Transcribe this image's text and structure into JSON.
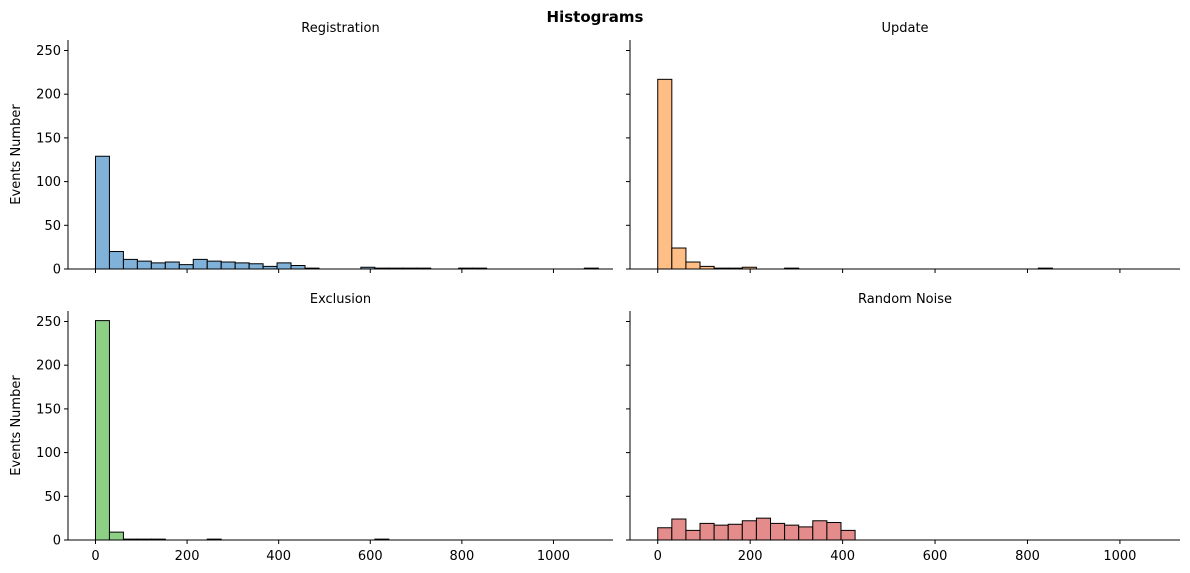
{
  "figure": {
    "title": "Histograms"
  },
  "chart_data": [
    {
      "type": "bar",
      "title": "Registration",
      "xlabel": "",
      "ylabel": "Events Number",
      "xlim": [
        -60,
        1130
      ],
      "ylim": [
        0,
        262
      ],
      "xticks": [
        0,
        200,
        400,
        600,
        800,
        1000
      ],
      "yticks": [
        0,
        50,
        100,
        150,
        200,
        250
      ],
      "show_xtick_labels": false,
      "show_ytick_labels": true,
      "bin_start": 0,
      "bin_width": 30.5,
      "color": "#7fb1d9",
      "values": [
        129,
        20,
        11,
        9,
        7,
        8,
        5,
        11,
        9,
        8,
        7,
        6,
        3,
        7,
        4,
        1,
        0,
        0,
        0,
        2,
        1,
        1,
        1,
        1,
        0,
        0,
        1,
        1,
        0,
        0,
        0,
        0,
        0,
        0,
        0,
        1
      ]
    },
    {
      "type": "bar",
      "title": "Update",
      "xlabel": "",
      "ylabel": "",
      "xlim": [
        -60,
        1130
      ],
      "ylim": [
        0,
        262
      ],
      "xticks": [
        0,
        200,
        400,
        600,
        800,
        1000
      ],
      "yticks": [
        0,
        50,
        100,
        150,
        200,
        250
      ],
      "show_xtick_labels": false,
      "show_ytick_labels": false,
      "bin_start": 0,
      "bin_width": 30.5,
      "color": "#ffbe86",
      "values": [
        217,
        24,
        8,
        3,
        1,
        1,
        2,
        0,
        0,
        1,
        0,
        0,
        0,
        0,
        0,
        0,
        0,
        0,
        0,
        0,
        0,
        0,
        0,
        0,
        0,
        0,
        0,
        1
      ]
    },
    {
      "type": "bar",
      "title": "Exclusion",
      "xlabel": "",
      "ylabel": "Events Number",
      "xlim": [
        -60,
        1130
      ],
      "ylim": [
        0,
        262
      ],
      "xticks": [
        0,
        200,
        400,
        600,
        800,
        1000
      ],
      "yticks": [
        0,
        50,
        100,
        150,
        200,
        250
      ],
      "show_xtick_labels": true,
      "show_ytick_labels": true,
      "bin_start": 0,
      "bin_width": 30.5,
      "color": "#8ecf86",
      "values": [
        251,
        9,
        1,
        1,
        1,
        0,
        0,
        0,
        1,
        0,
        0,
        0,
        0,
        0,
        0,
        0,
        0,
        0,
        0,
        0,
        1
      ]
    },
    {
      "type": "bar",
      "title": "Random Noise",
      "xlabel": "",
      "ylabel": "",
      "xlim": [
        -60,
        1130
      ],
      "ylim": [
        0,
        262
      ],
      "xticks": [
        0,
        200,
        400,
        600,
        800,
        1000
      ],
      "yticks": [
        0,
        50,
        100,
        150,
        200,
        250
      ],
      "show_xtick_labels": true,
      "show_ytick_labels": false,
      "bin_start": 0,
      "bin_width": 30.5,
      "color": "#e48c8c",
      "values": [
        14,
        24,
        11,
        19,
        17,
        18,
        22,
        25,
        19,
        17,
        15,
        22,
        20,
        11
      ]
    }
  ]
}
